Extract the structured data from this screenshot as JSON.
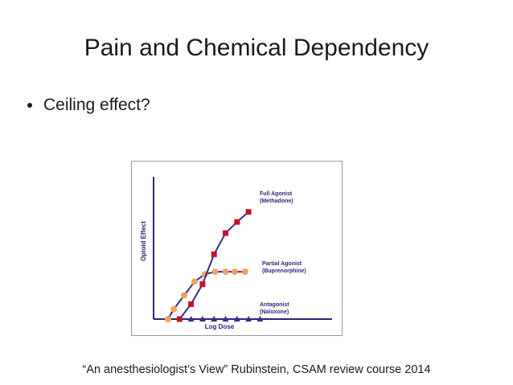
{
  "slide": {
    "title": "Pain and Chemical Dependency",
    "bullet": "Ceiling effect?",
    "caption": "“An anesthesiologist’s View” Rubinstein, CSAM review course 2014"
  },
  "chart_data": {
    "type": "line",
    "xlabel": "Log Dose",
    "ylabel": "Opioid Effect",
    "xlim": [
      0,
      12
    ],
    "ylim": [
      0,
      10
    ],
    "x": [
      0,
      1,
      2,
      3,
      4,
      5,
      6,
      7,
      8,
      9,
      10
    ],
    "grid": false,
    "series": [
      {
        "name": "Full Agonist (Methadone)",
        "label_lines": [
          "Full Agonist",
          "(Methadone)"
        ],
        "color": "#c8102e",
        "marker": "square",
        "x": [
          1,
          2,
          3,
          4,
          5,
          6,
          7
        ],
        "values": [
          0,
          1.2,
          2.8,
          5.2,
          6.9,
          7.8,
          8.6
        ]
      },
      {
        "name": "Partial Agonist (Buprenorphine)",
        "label_lines": [
          "Partial Agonist",
          "(Buprenorphine)"
        ],
        "color": "#f0a060",
        "marker": "circle",
        "x": [
          0,
          0.5,
          1.4,
          2.3,
          3.2,
          4.1,
          5.0,
          5.8,
          6.7
        ],
        "values": [
          0,
          0.8,
          1.9,
          3.0,
          3.6,
          3.8,
          3.8,
          3.8,
          3.8
        ]
      },
      {
        "name": "Antagonist (Naloxone)",
        "label_lines": [
          "Antagonist",
          "(Naloxone)"
        ],
        "color": "#3a2a8a",
        "marker": "triangle",
        "x": [
          2,
          3,
          4,
          5,
          6,
          7,
          8
        ],
        "values": [
          0,
          0,
          0,
          0,
          0,
          0,
          0
        ]
      }
    ]
  },
  "colors": {
    "axis": "#2e2577",
    "frame": "#999999"
  }
}
